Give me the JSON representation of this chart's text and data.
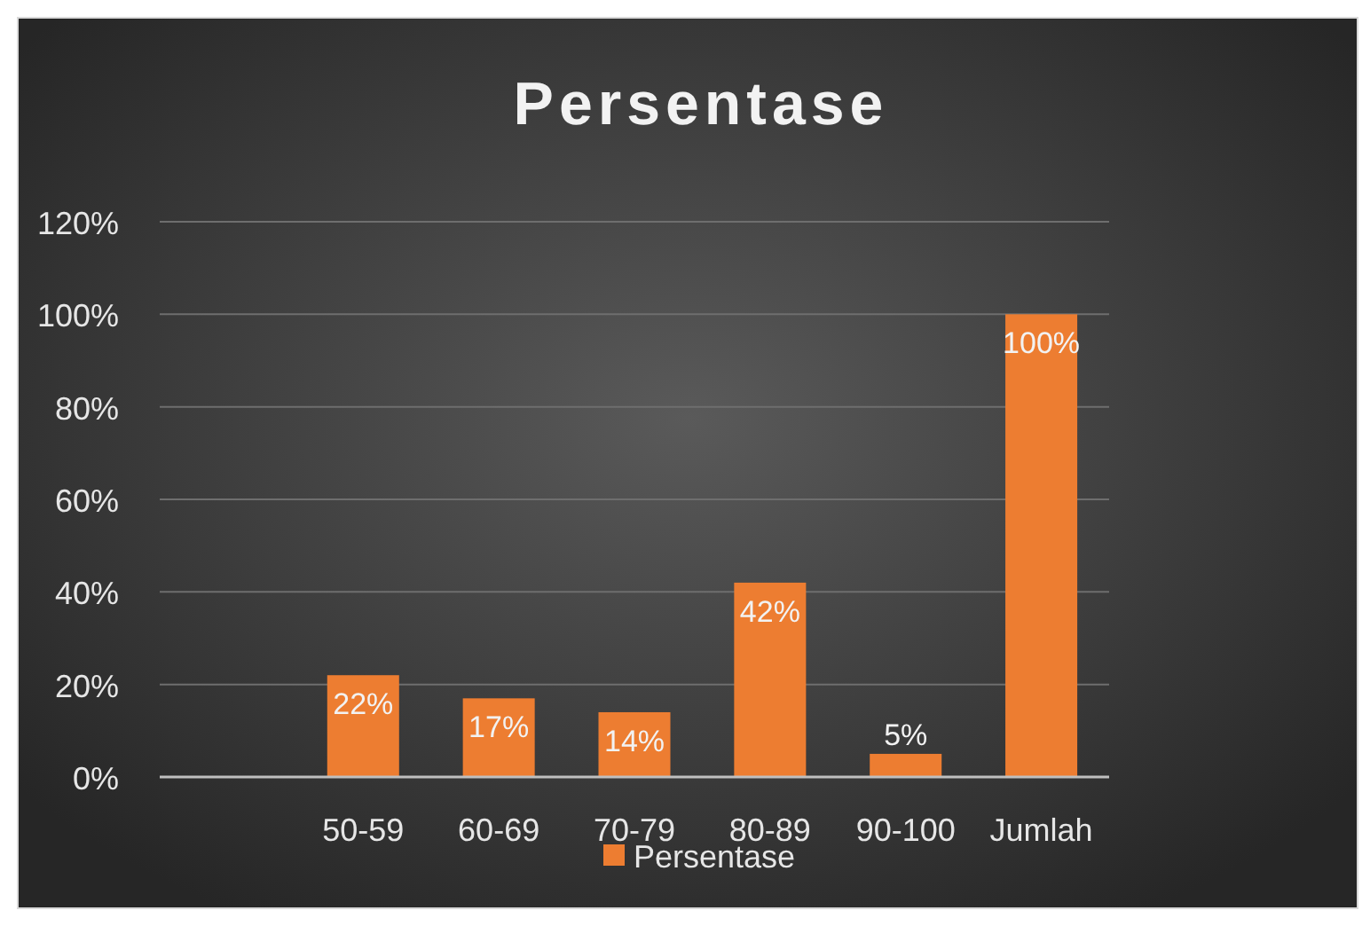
{
  "chart_data": {
    "type": "bar",
    "title": "Persentase",
    "categories": [
      null,
      "50-59",
      "60-69",
      "70-79",
      "80-89",
      "90-100",
      "Jumlah"
    ],
    "series": [
      {
        "name": "Persentase",
        "color": "#ed7d31",
        "values": [
          null,
          22,
          17,
          14,
          42,
          5,
          100
        ],
        "value_labels": [
          null,
          "22%",
          "17%",
          "14%",
          "42%",
          "5%",
          "100%"
        ]
      }
    ],
    "ylim": [
      0,
      120
    ],
    "yticks": [
      {
        "value": 0,
        "label": "0%"
      },
      {
        "value": 20,
        "label": "20%"
      },
      {
        "value": 40,
        "label": "40%"
      },
      {
        "value": 60,
        "label": "60%"
      },
      {
        "value": 80,
        "label": "80%"
      },
      {
        "value": 100,
        "label": "100%"
      },
      {
        "value": 120,
        "label": "120%"
      }
    ],
    "grid": "y",
    "legend": "bottom"
  }
}
